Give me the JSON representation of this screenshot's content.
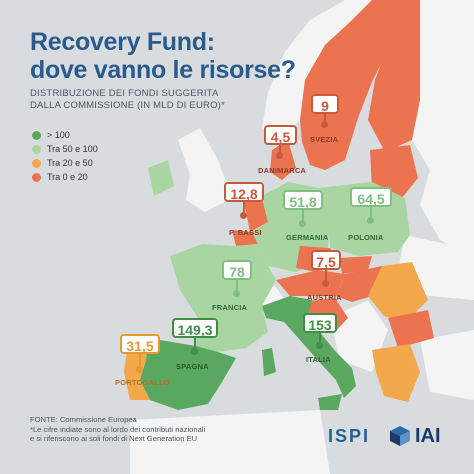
{
  "title": {
    "line1": "Recovery Fund:",
    "line2": "dove vanno le risorse?"
  },
  "subtitle": {
    "line1": "DISTRIBUZIONE DEI FONDI SUGGERITA",
    "line2": "DALLA COMMISSIONE (IN MLD DI EURO)*"
  },
  "legend": [
    {
      "label": "> 100",
      "color": "#5aa85f"
    },
    {
      "label": "Tra 50 e 100",
      "color": "#a8d5a2"
    },
    {
      "label": "Tra 20 e 50",
      "color": "#f2a84b"
    },
    {
      "label": "Tra 0 e 20",
      "color": "#ec7350"
    }
  ],
  "countries": {
    "svezia": {
      "value": "9",
      "name": "SVEZIA",
      "color": "#c55a3f"
    },
    "danimarca": {
      "value": "4,5",
      "name": "DANIMARCA",
      "color": "#c55a3f"
    },
    "pbassi": {
      "value": "12,8",
      "name": "P. BASSI",
      "color": "#c55a3f"
    },
    "germania": {
      "value": "51,8",
      "name": "GERMANIA",
      "color": "#7fbf80"
    },
    "polonia": {
      "value": "64,5",
      "name": "POLONIA",
      "color": "#7fbf80"
    },
    "francia": {
      "value": "78",
      "name": "FRANCIA",
      "color": "#7fbf80"
    },
    "austria": {
      "value": "7,5",
      "name": "AUSTRIA",
      "color": "#c55a3f"
    },
    "italia": {
      "value": "153",
      "name": "ITALIA",
      "color": "#3f8f46"
    },
    "spagna": {
      "value": "149,3",
      "name": "SPAGNA",
      "color": "#3f8f46"
    },
    "portogallo": {
      "value": "31,5",
      "name": "PORTOGALLO",
      "color": "#e29a35"
    }
  },
  "footer": {
    "source": "FONTE: Commissione Europea",
    "note1": "*Le cifre indiate sono al lordo dei contributi nazionali",
    "note2": "e si riferiscono ai soli fondi di Next Generation EU"
  },
  "logos": {
    "ispi": "ISPI",
    "iai": "IAI"
  }
}
